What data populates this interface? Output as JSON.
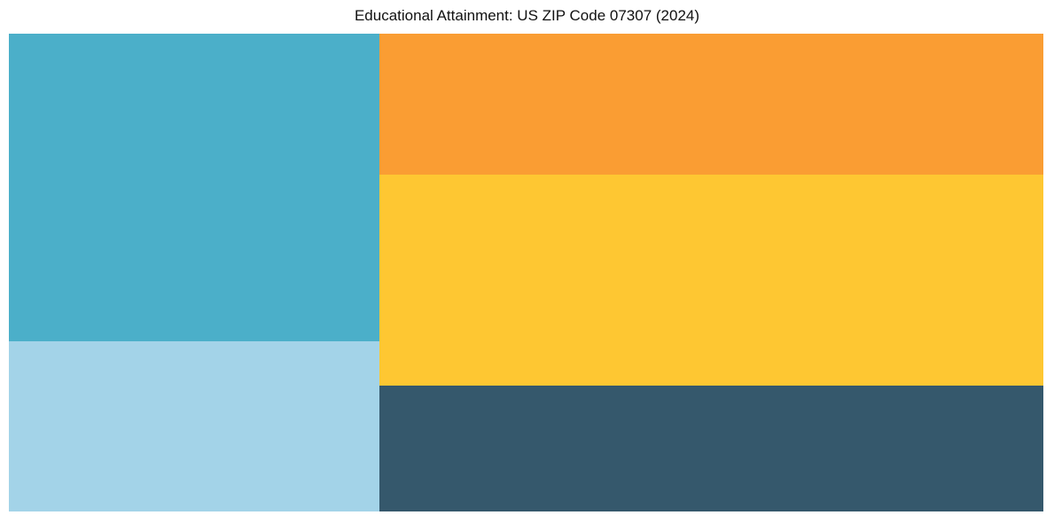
{
  "chart_data": {
    "type": "treemap",
    "title": "Educational Attainment: US ZIP Code 07307 (2024)",
    "labels_visible": false,
    "legend": "none",
    "background_color": "#ffffff",
    "title_color": "#111111",
    "columns": [
      {
        "name": "left",
        "width_pct": 35.8,
        "cells": [
          {
            "id": "teal",
            "color": "#4BAFC9",
            "height_pct": 64.4,
            "area_pct": 23.1
          },
          {
            "id": "light-blue",
            "color": "#A3D3E8",
            "height_pct": 35.6,
            "area_pct": 12.8
          }
        ]
      },
      {
        "name": "right",
        "width_pct": 64.2,
        "cells": [
          {
            "id": "orange",
            "color": "#FA9D33",
            "height_pct": 29.5,
            "area_pct": 18.9
          },
          {
            "id": "yellow",
            "color": "#FEC732",
            "height_pct": 44.1,
            "area_pct": 28.3
          },
          {
            "id": "dark-slate",
            "color": "#35586C",
            "height_pct": 26.4,
            "area_pct": 16.9
          }
        ]
      }
    ]
  }
}
